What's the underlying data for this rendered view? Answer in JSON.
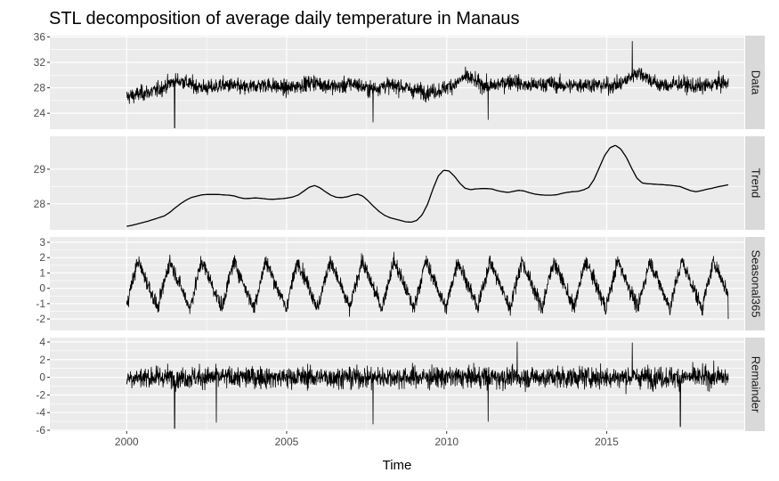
{
  "chart_data": {
    "type": "line",
    "title": "STL decomposition of average daily temperature in Manaus",
    "xlabel": "Time",
    "x_ticks": [
      2000,
      2005,
      2010,
      2015
    ],
    "xlim": [
      1997.6,
      2019.3
    ],
    "x_range": [
      2000.0,
      2018.8
    ],
    "panels": [
      {
        "name": "Data",
        "ylim": [
          21.5,
          36.2
        ],
        "yticks": [
          24,
          28,
          32,
          36
        ],
        "values": [
          26.6,
          26.8,
          27.1,
          27.3,
          27.5,
          28.0,
          28.7,
          29.1,
          29.0,
          28.5,
          28.2,
          28.0,
          28.0,
          28.4,
          28.4,
          28.3,
          28.0,
          28.0,
          28.3,
          28.5,
          28.4,
          28.2,
          27.9,
          28.0,
          28.4,
          28.6,
          28.9,
          28.6,
          28.4,
          28.2,
          28.2,
          28.6,
          28.6,
          28.1,
          27.8,
          28.0,
          28.4,
          28.3,
          28.3,
          28.0,
          27.6,
          27.5,
          27.3,
          27.5,
          27.7,
          28.3,
          28.6,
          29.6,
          29.5,
          28.8,
          28.4,
          28.2,
          28.6,
          28.9,
          29.1,
          28.6,
          28.3,
          28.4,
          28.6,
          28.7,
          28.5,
          28.3,
          28.3,
          28.4,
          28.6,
          28.5,
          28.4,
          28.3,
          28.4,
          28.6,
          29.4,
          30.4,
          30.2,
          29.3,
          28.6,
          28.4,
          28.4,
          28.7,
          28.5,
          28.2,
          28.2,
          28.3,
          28.6,
          28.8,
          28.6
        ],
        "noise": 1.2,
        "spikes": [
          {
            "x": 2001.5,
            "y": 21.7
          },
          {
            "x": 2007.7,
            "y": 22.6
          },
          {
            "x": 2011.3,
            "y": 23.0
          },
          {
            "x": 2015.8,
            "y": 35.3
          }
        ]
      },
      {
        "name": "Trend",
        "ylim": [
          27.25,
          29.95
        ],
        "yticks": [
          28,
          29
        ],
        "values": [
          27.35,
          27.38,
          27.42,
          27.46,
          27.5,
          27.55,
          27.6,
          27.65,
          27.75,
          27.88,
          28.0,
          28.1,
          28.18,
          28.22,
          28.26,
          28.27,
          28.27,
          28.27,
          28.26,
          28.25,
          28.23,
          28.18,
          28.15,
          28.16,
          28.17,
          28.16,
          28.14,
          28.13,
          28.14,
          28.15,
          28.17,
          28.2,
          28.26,
          28.37,
          28.48,
          28.53,
          28.46,
          28.35,
          28.25,
          28.19,
          28.18,
          28.2,
          28.25,
          28.28,
          28.22,
          28.08,
          27.92,
          27.78,
          27.67,
          27.6,
          27.56,
          27.52,
          27.48,
          27.47,
          27.52,
          27.68,
          27.98,
          28.42,
          28.8,
          28.97,
          28.95,
          28.8,
          28.6,
          28.45,
          28.41,
          28.43,
          28.44,
          28.44,
          28.43,
          28.38,
          28.35,
          28.33,
          28.36,
          28.39,
          28.37,
          28.32,
          28.28,
          28.26,
          28.25,
          28.25,
          28.26,
          28.3,
          28.33,
          28.35,
          28.36,
          28.4,
          28.47,
          28.7,
          29.05,
          29.4,
          29.62,
          29.69,
          29.58,
          29.35,
          29.03,
          28.74,
          28.6,
          28.58,
          28.57,
          28.56,
          28.55,
          28.54,
          28.52,
          28.5,
          28.44,
          28.38,
          28.35,
          28.38,
          28.42,
          28.45,
          28.49,
          28.52,
          28.55
        ]
      },
      {
        "name": "Seasonal365",
        "ylim": [
          -2.75,
          3.35
        ],
        "yticks": [
          -2,
          -1,
          0,
          1,
          2,
          3
        ],
        "period": 1.0,
        "amplitude": 1.8,
        "noise": 0.5
      },
      {
        "name": "Remainder",
        "ylim": [
          -6.1,
          4.5
        ],
        "yticks": [
          -6,
          -4,
          -2,
          0,
          2,
          4
        ],
        "noise": 1.2,
        "spikes": [
          {
            "x": 2001.5,
            "y": -5.8
          },
          {
            "x": 2002.8,
            "y": -5.1
          },
          {
            "x": 2007.7,
            "y": -5.3
          },
          {
            "x": 2011.3,
            "y": -5.0
          },
          {
            "x": 2012.2,
            "y": 4.0
          },
          {
            "x": 2015.8,
            "y": 3.9
          },
          {
            "x": 2017.3,
            "y": -5.6
          }
        ]
      }
    ],
    "grid": true,
    "line_color": "#000000",
    "panel_background": "#ebebeb",
    "strip_background": "#d9d9d9",
    "grid_color": "#ffffff"
  }
}
